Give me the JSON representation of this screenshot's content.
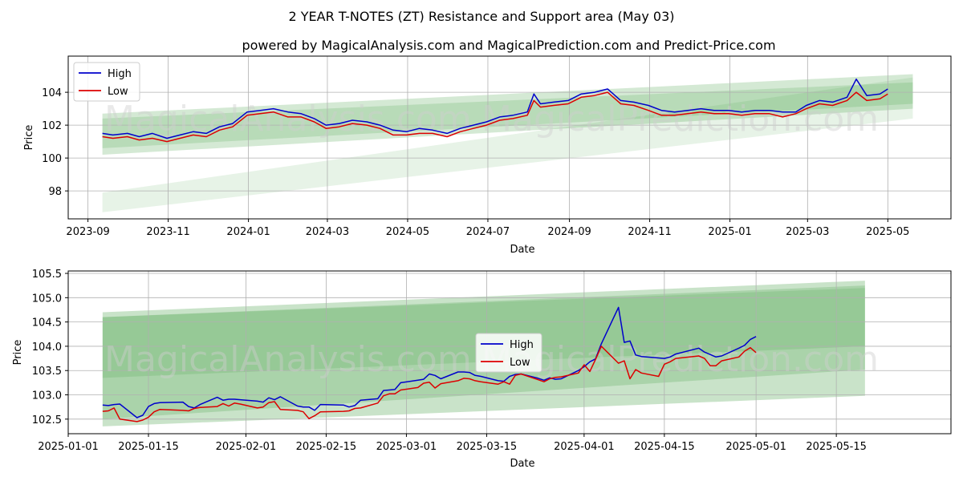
{
  "title": "2 YEAR T-NOTES (ZT) Resistance and Support area (May 03)",
  "subtitle": "powered by MagicalAnalysis.com and MagicalPrediction.com and Predict-Price.com",
  "watermarks": [
    "MagicalAnalysis.com",
    "MagicalPrediction.com"
  ],
  "colors": {
    "high": "#0000cc",
    "low": "#dd0000",
    "band": "#3c9b3c",
    "grid": "#b0b0b0"
  },
  "chart_data": [
    {
      "type": "line",
      "xlabel": "Date",
      "ylabel": "Price",
      "xlim": [
        "2023-08-17",
        "2025-06-18"
      ],
      "ylim": [
        96.3,
        106.2
      ],
      "x_ticks": [
        "2023-09",
        "2023-11",
        "2024-01",
        "2024-03",
        "2024-05",
        "2024-07",
        "2024-09",
        "2024-11",
        "2025-01",
        "2025-03",
        "2025-05"
      ],
      "y_ticks": [
        98,
        100,
        102,
        104
      ],
      "grid": true,
      "legend": "top-left",
      "series": [
        {
          "name": "High",
          "x": [
            "2023-09-12",
            "2023-09-20",
            "2023-10-01",
            "2023-10-10",
            "2023-10-20",
            "2023-10-31",
            "2023-11-10",
            "2023-11-20",
            "2023-11-30",
            "2023-12-10",
            "2023-12-20",
            "2023-12-31",
            "2024-01-10",
            "2024-01-20",
            "2024-01-31",
            "2024-02-10",
            "2024-02-20",
            "2024-02-29",
            "2024-03-10",
            "2024-03-20",
            "2024-03-31",
            "2024-04-10",
            "2024-04-20",
            "2024-04-30",
            "2024-05-10",
            "2024-05-20",
            "2024-05-31",
            "2024-06-10",
            "2024-06-20",
            "2024-06-30",
            "2024-07-10",
            "2024-07-20",
            "2024-07-31",
            "2024-08-05",
            "2024-08-10",
            "2024-08-20",
            "2024-08-31",
            "2024-09-10",
            "2024-09-20",
            "2024-09-30",
            "2024-10-10",
            "2024-10-20",
            "2024-10-31",
            "2024-11-10",
            "2024-11-20",
            "2024-11-30",
            "2024-12-10",
            "2024-12-20",
            "2024-12-31",
            "2025-01-10",
            "2025-01-20",
            "2025-01-31",
            "2025-02-10",
            "2025-02-20",
            "2025-02-28",
            "2025-03-10",
            "2025-03-20",
            "2025-03-31",
            "2025-04-07",
            "2025-04-15",
            "2025-04-25",
            "2025-05-01"
          ],
          "values": [
            101.5,
            101.4,
            101.5,
            101.3,
            101.5,
            101.2,
            101.4,
            101.6,
            101.5,
            101.9,
            102.1,
            102.8,
            102.9,
            103.0,
            102.8,
            102.7,
            102.4,
            102.0,
            102.1,
            102.3,
            102.2,
            102.0,
            101.7,
            101.6,
            101.8,
            101.7,
            101.5,
            101.8,
            102.0,
            102.2,
            102.5,
            102.6,
            102.8,
            103.9,
            103.3,
            103.4,
            103.5,
            103.9,
            104.0,
            104.2,
            103.5,
            103.4,
            103.2,
            102.9,
            102.8,
            102.9,
            103.0,
            102.9,
            102.9,
            102.8,
            102.9,
            102.9,
            102.8,
            102.8,
            103.2,
            103.5,
            103.4,
            103.7,
            104.8,
            103.8,
            103.9,
            104.2
          ]
        },
        {
          "name": "Low",
          "x": [
            "2023-09-12",
            "2023-09-20",
            "2023-10-01",
            "2023-10-10",
            "2023-10-20",
            "2023-10-31",
            "2023-11-10",
            "2023-11-20",
            "2023-11-30",
            "2023-12-10",
            "2023-12-20",
            "2023-12-31",
            "2024-01-10",
            "2024-01-20",
            "2024-01-31",
            "2024-02-10",
            "2024-02-20",
            "2024-02-29",
            "2024-03-10",
            "2024-03-20",
            "2024-03-31",
            "2024-04-10",
            "2024-04-20",
            "2024-04-30",
            "2024-05-10",
            "2024-05-20",
            "2024-05-31",
            "2024-06-10",
            "2024-06-20",
            "2024-06-30",
            "2024-07-10",
            "2024-07-20",
            "2024-07-31",
            "2024-08-05",
            "2024-08-10",
            "2024-08-20",
            "2024-08-31",
            "2024-09-10",
            "2024-09-20",
            "2024-09-30",
            "2024-10-10",
            "2024-10-20",
            "2024-10-31",
            "2024-11-10",
            "2024-11-20",
            "2024-11-30",
            "2024-12-10",
            "2024-12-20",
            "2024-12-31",
            "2025-01-10",
            "2025-01-20",
            "2025-01-31",
            "2025-02-10",
            "2025-02-20",
            "2025-02-28",
            "2025-03-10",
            "2025-03-20",
            "2025-03-31",
            "2025-04-07",
            "2025-04-15",
            "2025-04-25",
            "2025-05-01"
          ],
          "values": [
            101.3,
            101.2,
            101.3,
            101.1,
            101.2,
            101.0,
            101.2,
            101.4,
            101.3,
            101.7,
            101.9,
            102.6,
            102.7,
            102.8,
            102.5,
            102.5,
            102.2,
            101.8,
            101.9,
            102.1,
            102.0,
            101.8,
            101.4,
            101.4,
            101.5,
            101.5,
            101.3,
            101.6,
            101.8,
            102.0,
            102.3,
            102.4,
            102.6,
            103.5,
            103.1,
            103.2,
            103.3,
            103.7,
            103.8,
            104.0,
            103.3,
            103.2,
            102.9,
            102.6,
            102.6,
            102.7,
            102.8,
            102.7,
            102.7,
            102.6,
            102.7,
            102.7,
            102.5,
            102.7,
            103.0,
            103.3,
            103.2,
            103.5,
            104.0,
            103.5,
            103.6,
            103.9
          ]
        }
      ],
      "bands": [
        {
          "x": [
            "2023-09-12",
            "2025-05-20"
          ],
          "upper": [
            102.7,
            105.1
          ],
          "lower": [
            100.2,
            103.0
          ]
        },
        {
          "x": [
            "2023-09-12",
            "2025-05-20"
          ],
          "upper": [
            102.4,
            104.6
          ],
          "lower": [
            100.6,
            103.3
          ]
        },
        {
          "x": [
            "2023-09-12",
            "2025-05-20"
          ],
          "upper": [
            97.9,
            104.9
          ],
          "lower": [
            96.7,
            102.4
          ]
        }
      ]
    },
    {
      "type": "line",
      "xlabel": "Date",
      "ylabel": "Price",
      "xlim": [
        "2025-01-01",
        "2025-06-04"
      ],
      "ylim": [
        102.2,
        105.55
      ],
      "x_ticks": [
        "2025-01-01",
        "2025-01-15",
        "2025-02-01",
        "2025-02-15",
        "2025-03-01",
        "2025-03-15",
        "2025-04-01",
        "2025-04-15",
        "2025-05-01",
        "2025-05-15"
      ],
      "y_ticks": [
        102.5,
        103.0,
        103.5,
        104.0,
        104.5,
        105.0,
        105.5
      ],
      "grid": true,
      "legend": "center",
      "series": [
        {
          "name": "High",
          "x": [
            "2025-01-07",
            "2025-01-08",
            "2025-01-09",
            "2025-01-10",
            "2025-01-13",
            "2025-01-14",
            "2025-01-15",
            "2025-01-16",
            "2025-01-17",
            "2025-01-21",
            "2025-01-22",
            "2025-01-23",
            "2025-01-24",
            "2025-01-27",
            "2025-01-28",
            "2025-01-29",
            "2025-01-30",
            "2025-01-31",
            "2025-02-03",
            "2025-02-04",
            "2025-02-05",
            "2025-02-06",
            "2025-02-07",
            "2025-02-10",
            "2025-02-11",
            "2025-02-12",
            "2025-02-13",
            "2025-02-14",
            "2025-02-18",
            "2025-02-19",
            "2025-02-20",
            "2025-02-21",
            "2025-02-24",
            "2025-02-25",
            "2025-02-26",
            "2025-02-27",
            "2025-02-28",
            "2025-03-03",
            "2025-03-04",
            "2025-03-05",
            "2025-03-06",
            "2025-03-07",
            "2025-03-10",
            "2025-03-11",
            "2025-03-12",
            "2025-03-13",
            "2025-03-14",
            "2025-03-17",
            "2025-03-18",
            "2025-03-19",
            "2025-03-20",
            "2025-03-21",
            "2025-03-24",
            "2025-03-25",
            "2025-03-26",
            "2025-03-27",
            "2025-03-28",
            "2025-03-31",
            "2025-04-01",
            "2025-04-02",
            "2025-04-03",
            "2025-04-04",
            "2025-04-07",
            "2025-04-08",
            "2025-04-09",
            "2025-04-10",
            "2025-04-11",
            "2025-04-14",
            "2025-04-15",
            "2025-04-16",
            "2025-04-17",
            "2025-04-21",
            "2025-04-22",
            "2025-04-23",
            "2025-04-24",
            "2025-04-25",
            "2025-04-28",
            "2025-04-29",
            "2025-04-30",
            "2025-05-01"
          ],
          "values": [
            102.79,
            102.78,
            102.8,
            102.81,
            102.53,
            102.58,
            102.76,
            102.82,
            102.84,
            102.85,
            102.76,
            102.73,
            102.8,
            102.95,
            102.89,
            102.91,
            102.91,
            102.9,
            102.87,
            102.85,
            102.94,
            102.9,
            102.96,
            102.77,
            102.75,
            102.75,
            102.68,
            102.8,
            102.79,
            102.75,
            102.78,
            102.89,
            102.92,
            103.09,
            103.1,
            103.11,
            103.25,
            103.3,
            103.32,
            103.43,
            103.4,
            103.33,
            103.47,
            103.47,
            103.46,
            103.4,
            103.38,
            103.29,
            103.28,
            103.38,
            103.42,
            103.43,
            103.34,
            103.3,
            103.35,
            103.32,
            103.33,
            103.5,
            103.58,
            103.68,
            103.74,
            104.05,
            104.8,
            104.08,
            104.11,
            103.82,
            103.79,
            103.76,
            103.75,
            103.78,
            103.84,
            103.96,
            103.88,
            103.83,
            103.78,
            103.8,
            103.96,
            104.02,
            104.14,
            104.2
          ]
        },
        {
          "name": "Low",
          "x": [
            "2025-01-07",
            "2025-01-08",
            "2025-01-09",
            "2025-01-10",
            "2025-01-13",
            "2025-01-14",
            "2025-01-15",
            "2025-01-16",
            "2025-01-17",
            "2025-01-21",
            "2025-01-22",
            "2025-01-23",
            "2025-01-24",
            "2025-01-27",
            "2025-01-28",
            "2025-01-29",
            "2025-01-30",
            "2025-01-31",
            "2025-02-03",
            "2025-02-04",
            "2025-02-05",
            "2025-02-06",
            "2025-02-07",
            "2025-02-10",
            "2025-02-11",
            "2025-02-12",
            "2025-02-13",
            "2025-02-14",
            "2025-02-18",
            "2025-02-19",
            "2025-02-20",
            "2025-02-21",
            "2025-02-24",
            "2025-02-25",
            "2025-02-26",
            "2025-02-27",
            "2025-02-28",
            "2025-03-03",
            "2025-03-04",
            "2025-03-05",
            "2025-03-06",
            "2025-03-07",
            "2025-03-10",
            "2025-03-11",
            "2025-03-12",
            "2025-03-13",
            "2025-03-14",
            "2025-03-17",
            "2025-03-18",
            "2025-03-19",
            "2025-03-20",
            "2025-03-21",
            "2025-03-24",
            "2025-03-25",
            "2025-03-26",
            "2025-03-27",
            "2025-03-28",
            "2025-03-31",
            "2025-04-01",
            "2025-04-02",
            "2025-04-03",
            "2025-04-04",
            "2025-04-07",
            "2025-04-08",
            "2025-04-09",
            "2025-04-10",
            "2025-04-11",
            "2025-04-14",
            "2025-04-15",
            "2025-04-16",
            "2025-04-17",
            "2025-04-21",
            "2025-04-22",
            "2025-04-23",
            "2025-04-24",
            "2025-04-25",
            "2025-04-28",
            "2025-04-29",
            "2025-04-30",
            "2025-05-01"
          ],
          "values": [
            102.66,
            102.67,
            102.73,
            102.5,
            102.45,
            102.48,
            102.54,
            102.65,
            102.7,
            102.68,
            102.67,
            102.72,
            102.74,
            102.76,
            102.82,
            102.77,
            102.83,
            102.81,
            102.73,
            102.75,
            102.84,
            102.86,
            102.7,
            102.68,
            102.65,
            102.51,
            102.57,
            102.65,
            102.66,
            102.67,
            102.72,
            102.73,
            102.83,
            102.98,
            103.02,
            103.02,
            103.1,
            103.15,
            103.24,
            103.26,
            103.14,
            103.23,
            103.29,
            103.34,
            103.33,
            103.29,
            103.27,
            103.22,
            103.27,
            103.22,
            103.4,
            103.43,
            103.31,
            103.27,
            103.33,
            103.36,
            103.37,
            103.45,
            103.62,
            103.48,
            103.73,
            104.0,
            103.65,
            103.7,
            103.33,
            103.52,
            103.45,
            103.38,
            103.63,
            103.68,
            103.75,
            103.8,
            103.75,
            103.6,
            103.6,
            103.7,
            103.78,
            103.9,
            103.97,
            103.87
          ]
        }
      ],
      "bands": [
        {
          "x": [
            "2025-01-07",
            "2025-05-20"
          ],
          "upper": [
            104.7,
            105.35
          ],
          "lower": [
            102.35,
            102.98
          ]
        },
        {
          "x": [
            "2025-01-07",
            "2025-05-20"
          ],
          "upper": [
            104.6,
            105.25
          ],
          "lower": [
            102.5,
            103.52
          ]
        },
        {
          "x": [
            "2025-01-07",
            "2025-05-20"
          ],
          "upper": [
            104.6,
            105.2
          ],
          "lower": [
            103.35,
            104.0
          ]
        }
      ]
    }
  ]
}
